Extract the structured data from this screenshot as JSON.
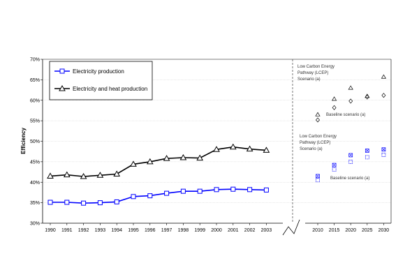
{
  "chart_data": {
    "type": "line",
    "xlabel": "",
    "ylabel": "Efficiency",
    "ylim": [
      30,
      70
    ],
    "y_ticks": [
      "30%",
      "35%",
      "40%",
      "45%",
      "50%",
      "55%",
      "60%",
      "65%",
      "70%"
    ],
    "grid": "horizontal",
    "legend_position": "top-left",
    "x_historical": [
      "1990",
      "1991",
      "1992",
      "1993",
      "1994",
      "1995",
      "1996",
      "1997",
      "1998",
      "1999",
      "2000",
      "2001",
      "2002",
      "2003"
    ],
    "x_projection": [
      "2010",
      "2015",
      "2020",
      "2025",
      "2030"
    ],
    "series": [
      {
        "name": "Electricity production",
        "color": "#0000ff",
        "marker": "square",
        "values": [
          35.1,
          35.1,
          34.9,
          35.0,
          35.2,
          36.5,
          36.7,
          37.3,
          37.8,
          37.8,
          38.2,
          38.3,
          38.2,
          38.1
        ]
      },
      {
        "name": "Electricity and heat production",
        "color": "#000000",
        "marker": "triangle",
        "values": [
          41.5,
          41.8,
          41.4,
          41.7,
          42.0,
          44.4,
          45.0,
          45.8,
          46.0,
          45.9,
          48.0,
          48.6,
          48.1,
          47.8
        ]
      }
    ],
    "projections": [
      {
        "group": "Electricity and heat production",
        "scenario": "Low Carbon Energy Pathway (LCEP) Scenario (a)",
        "color": "#000000",
        "marker": "open-triangle",
        "x": [
          "2010",
          "2015",
          "2020",
          "2025",
          "2030"
        ],
        "values": [
          56.5,
          60.3,
          63.0,
          61.0,
          65.7
        ]
      },
      {
        "group": "Electricity and heat production",
        "scenario": "Baseline scenario (a)",
        "color": "#000000",
        "marker": "diamond",
        "x": [
          "2010",
          "2015",
          "2020",
          "2025",
          "2030"
        ],
        "values": [
          55.2,
          58.2,
          59.8,
          60.8,
          61.2
        ]
      },
      {
        "group": "Electricity production",
        "scenario": "Low Carbon Energy Pathway (LCEP) Scenario (a)",
        "color": "#0000ff",
        "marker": "x-square",
        "x": [
          "2010",
          "2015",
          "2020",
          "2025",
          "2030"
        ],
        "values": [
          41.5,
          44.2,
          46.6,
          47.7,
          48.0
        ]
      },
      {
        "group": "Electricity production",
        "scenario": "Baseline scenario (a)",
        "color": "#0000ff",
        "marker": "open-square",
        "x": [
          "2010",
          "2015",
          "2020",
          "2025",
          "2030"
        ],
        "values": [
          40.5,
          43.1,
          45.0,
          46.1,
          46.7
        ]
      }
    ],
    "annotations": [
      {
        "id": "heat-lcep",
        "lines": [
          "Low Carbon Energy",
          "Pathway (LCEP)",
          "Scenario (a)"
        ]
      },
      {
        "id": "heat-baseline",
        "lines": [
          "Baseline scenario (a)"
        ]
      },
      {
        "id": "elec-lcep",
        "lines": [
          "Low Carbon Energy",
          "Pathway (LCEP)",
          "Scenario (a)"
        ]
      },
      {
        "id": "elec-baseline",
        "lines": [
          "Baseline scenario (a)"
        ]
      }
    ]
  }
}
